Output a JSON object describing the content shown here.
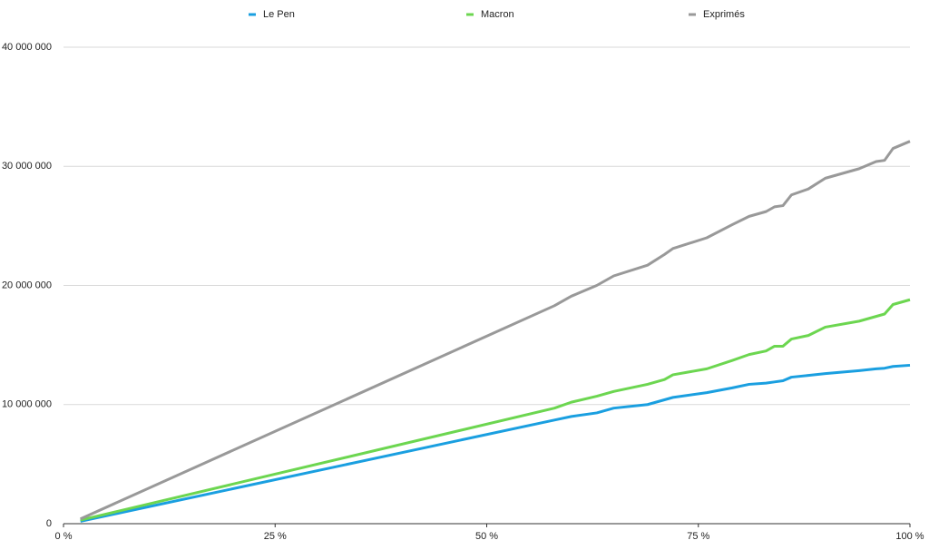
{
  "chart_data": {
    "type": "line",
    "x": [
      2,
      58,
      60,
      63,
      65,
      69,
      71,
      72,
      76,
      79,
      81,
      83,
      84,
      85,
      86,
      88,
      90,
      94,
      96,
      97,
      98,
      100
    ],
    "series": [
      {
        "name": "Le Pen",
        "color": "#1a9fe0",
        "values": [
          200000,
          8700000,
          9000000,
          9300000,
          9700000,
          10000000,
          10400000,
          10600000,
          11000000,
          11400000,
          11700000,
          11800000,
          11900000,
          12000000,
          12300000,
          12450000,
          12600000,
          12850000,
          13000000,
          13050000,
          13200000,
          13300000
        ]
      },
      {
        "name": "Macron",
        "color": "#6cd650",
        "values": [
          300000,
          9700000,
          10200000,
          10700000,
          11100000,
          11700000,
          12100000,
          12500000,
          13000000,
          13700000,
          14200000,
          14500000,
          14900000,
          14900000,
          15500000,
          15800000,
          16500000,
          17000000,
          17400000,
          17600000,
          18400000,
          18800000
        ]
      },
      {
        "name": "Exprimés",
        "color": "#999999",
        "values": [
          400000,
          18300000,
          19100000,
          20000000,
          20800000,
          21700000,
          22600000,
          23100000,
          24000000,
          25100000,
          25800000,
          26200000,
          26600000,
          26700000,
          27600000,
          28100000,
          29000000,
          29800000,
          30400000,
          30500000,
          31500000,
          32100000
        ]
      }
    ],
    "xlim": [
      0,
      100
    ],
    "xticks": [
      {
        "value": 0,
        "label": "0 %"
      },
      {
        "value": 25,
        "label": "25 %"
      },
      {
        "value": 50,
        "label": "50 %"
      },
      {
        "value": 75,
        "label": "75 %"
      },
      {
        "value": 100,
        "label": "100 %"
      }
    ],
    "ylim": [
      0,
      40000000
    ],
    "yticks": [
      0,
      {
        "value": 10000000,
        "label": "10 000 000"
      },
      {
        "value": 20000000,
        "label": "20 000 000"
      },
      {
        "value": 30000000,
        "label": "30 000 000"
      },
      {
        "value": 40000000,
        "label": "40 000 000"
      }
    ],
    "grid": true,
    "legend": "top"
  }
}
